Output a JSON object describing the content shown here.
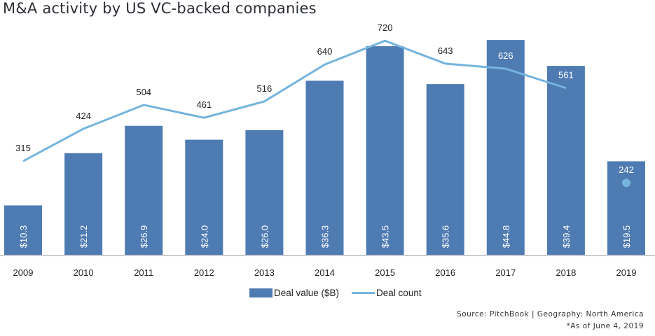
{
  "chart_data": {
    "type": "bar",
    "title": "M&A activity by US VC-backed companies",
    "categories": [
      "2009",
      "2010",
      "2011",
      "2012",
      "2013",
      "2014",
      "2015",
      "2016",
      "2017",
      "2018",
      "2019"
    ],
    "series": [
      {
        "name": "Deal value ($B)",
        "type": "bar",
        "values": [
          10.3,
          21.2,
          26.9,
          24.0,
          26.0,
          36.3,
          43.5,
          35.6,
          44.8,
          39.4,
          19.5
        ],
        "labels": [
          "$10.3",
          "$21.2",
          "$26.9",
          "$24.0",
          "$26.0",
          "$36.3",
          "$43.5",
          "$35.6",
          "$44.8",
          "$39.4",
          "$19.5"
        ],
        "color": "#4f7bb3"
      },
      {
        "name": "Deal count",
        "type": "line",
        "values": [
          315,
          424,
          504,
          461,
          516,
          640,
          720,
          643,
          626,
          561,
          242
        ],
        "labels": [
          "315",
          "424",
          "504",
          "461",
          "516",
          "640",
          "720",
          "643",
          "626",
          "561",
          "242"
        ],
        "color": "#74b4dd"
      }
    ],
    "legend_position": "bottom",
    "grid": false,
    "ylim_value": [
      0,
      53
    ],
    "ylim_count": [
      0,
      855
    ]
  },
  "legend": {
    "bar": "Deal value ($B)",
    "line": "Deal count"
  },
  "source": "Source: PitchBook | Geography: North America",
  "footnote": "*As of June 4, 2019"
}
